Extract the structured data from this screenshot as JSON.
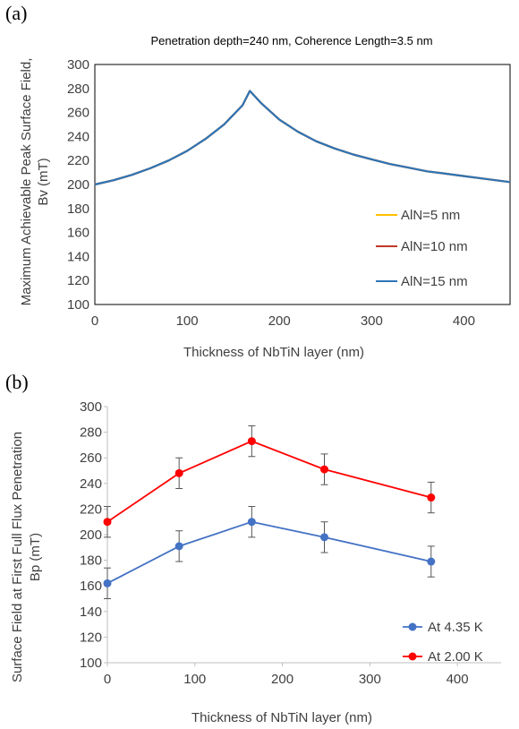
{
  "chart_data": [
    {
      "panel_label": "(a)",
      "type": "line",
      "title": "Penetration depth=240 nm, Coherence Length=3.5 nm",
      "xlabel": "Thickness of NbTiN layer (nm)",
      "ylabel_lines": [
        "Maximum Achievable Peak Surface  Field,",
        "Bv  (mT)"
      ],
      "xlim": [
        0,
        450
      ],
      "ylim": [
        100,
        300
      ],
      "x_ticks": [
        "0",
        "100",
        "200",
        "300",
        "400"
      ],
      "y_ticks": [
        "100",
        "120",
        "140",
        "160",
        "180",
        "200",
        "220",
        "240",
        "260",
        "280",
        "300"
      ],
      "legend_position": "lower-right",
      "grid": false,
      "series": [
        {
          "name": "AlN=5 nm",
          "color": "#FFC000",
          "x": [
            0,
            20,
            40,
            60,
            80,
            100,
            120,
            140,
            160,
            168,
            180,
            200,
            220,
            240,
            260,
            280,
            300,
            320,
            340,
            360,
            380,
            400,
            420,
            450
          ],
          "y": [
            200,
            203.5,
            208,
            213.5,
            220,
            228,
            238,
            250,
            266,
            278,
            268,
            254,
            244,
            236,
            230,
            225,
            221,
            217,
            214,
            211,
            209,
            207,
            205,
            202
          ]
        },
        {
          "name": "AlN=10 nm",
          "color": "#C0392B",
          "x": [
            0,
            20,
            40,
            60,
            80,
            100,
            120,
            140,
            160,
            168,
            180,
            200,
            220,
            240,
            260,
            280,
            300,
            320,
            340,
            360,
            380,
            400,
            420,
            450
          ],
          "y": [
            200,
            203.5,
            208,
            213.5,
            220,
            228,
            238,
            250,
            266,
            278,
            268,
            254,
            244,
            236,
            230,
            225,
            221,
            217,
            214,
            211,
            209,
            207,
            205,
            202
          ]
        },
        {
          "name": "AlN=15 nm",
          "color": "#2E75B6",
          "x": [
            0,
            20,
            40,
            60,
            80,
            100,
            120,
            140,
            160,
            168,
            180,
            200,
            220,
            240,
            260,
            280,
            300,
            320,
            340,
            360,
            380,
            400,
            420,
            450
          ],
          "y": [
            200,
            203.5,
            208,
            213.5,
            220,
            228,
            238,
            250,
            266,
            278,
            268,
            254,
            244,
            236,
            230,
            225,
            221,
            217,
            214,
            211,
            209,
            207,
            205,
            202
          ]
        }
      ]
    },
    {
      "panel_label": "(b)",
      "type": "scatter",
      "title": "",
      "xlabel": "Thickness of NbTiN layer (nm)",
      "ylabel_lines": [
        "Surface Field at First Full Flux Penetration",
        "Bp (mT)"
      ],
      "xlim": [
        0,
        450
      ],
      "ylim": [
        100,
        300
      ],
      "x_ticks": [
        "0",
        "100",
        "200",
        "300",
        "400"
      ],
      "y_ticks": [
        "100",
        "120",
        "140",
        "160",
        "180",
        "200",
        "220",
        "240",
        "260",
        "280",
        "300"
      ],
      "legend_position": "lower-right",
      "grid": false,
      "error": 12,
      "series": [
        {
          "name": "At 4.35 K",
          "color": "#4472C4",
          "x": [
            0,
            82,
            165,
            248,
            370
          ],
          "y": [
            162,
            191,
            210,
            198,
            179
          ]
        },
        {
          "name": "At 2.00 K",
          "color": "#FF0000",
          "x": [
            0,
            82,
            165,
            248,
            370
          ],
          "y": [
            210,
            248,
            273,
            251,
            229
          ]
        }
      ]
    }
  ]
}
